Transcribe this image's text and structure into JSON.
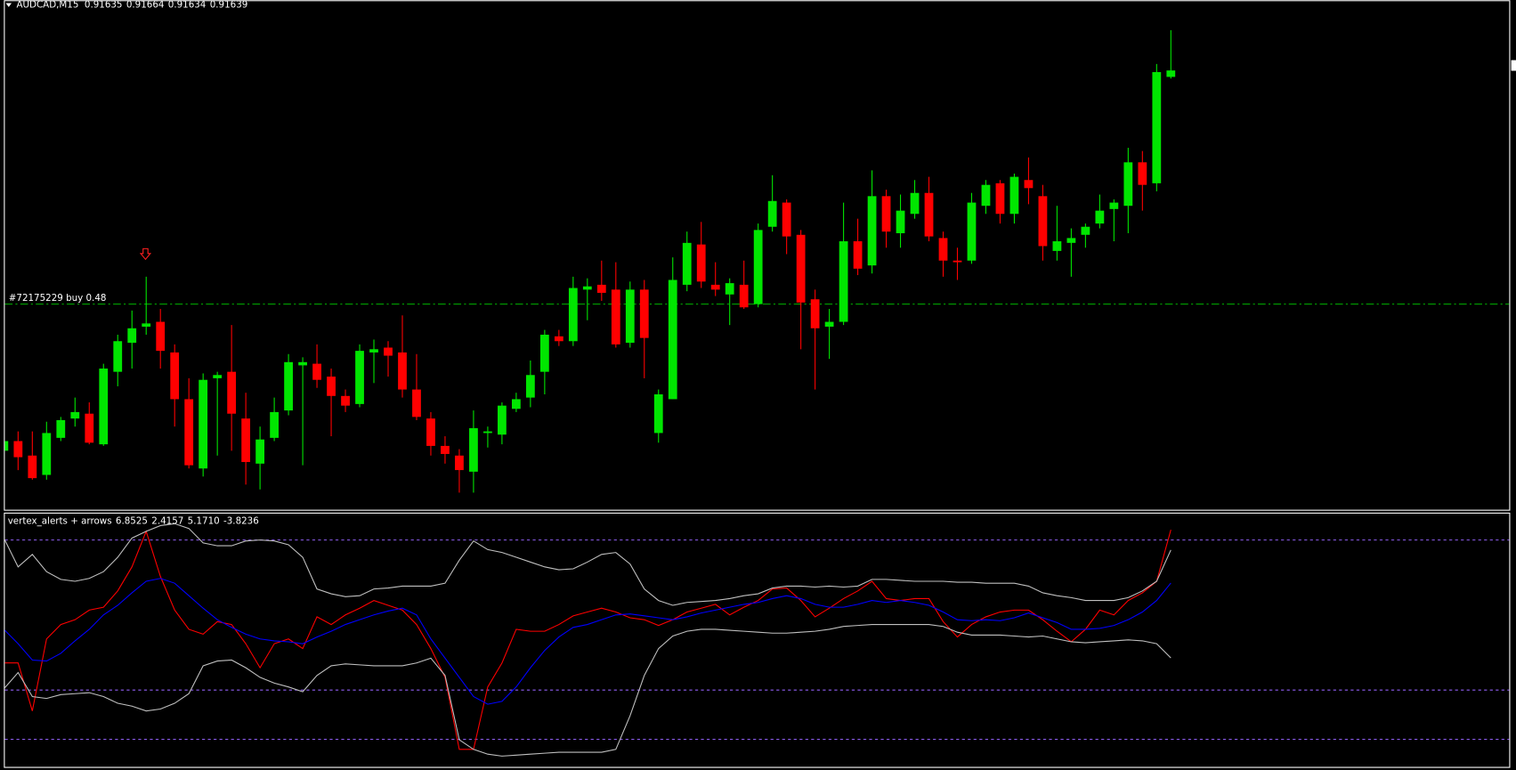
{
  "chart_data": [
    {
      "type": "candlestick",
      "title": "AUDCAD,M15",
      "ylim": [
        0.91367,
        0.91682
      ],
      "up_color": "#00e600",
      "down_color": "#ff0000",
      "candles": [
        [
          0.91403,
          0.91418,
          0.91382,
          0.91409
        ],
        [
          0.91409,
          0.91415,
          0.91391,
          0.91399
        ],
        [
          0.914,
          0.91415,
          0.91385,
          0.91386
        ],
        [
          0.91388,
          0.91421,
          0.91385,
          0.91414
        ],
        [
          0.91411,
          0.91424,
          0.91409,
          0.91422
        ],
        [
          0.91423,
          0.91436,
          0.91418,
          0.91427
        ],
        [
          0.91426,
          0.91433,
          0.91407,
          0.91408
        ],
        [
          0.91407,
          0.91457,
          0.91406,
          0.91454
        ],
        [
          0.91452,
          0.91475,
          0.91443,
          0.91471
        ],
        [
          0.9147,
          0.9149,
          0.91454,
          0.91479
        ],
        [
          0.9148,
          0.91511,
          0.91475,
          0.91482
        ],
        [
          0.91483,
          0.91491,
          0.91454,
          0.91465
        ],
        [
          0.91464,
          0.91469,
          0.91418,
          0.91435
        ],
        [
          0.91435,
          0.91448,
          0.91392,
          0.91394
        ],
        [
          0.91392,
          0.91451,
          0.91387,
          0.91447
        ],
        [
          0.91448,
          0.91452,
          0.914,
          0.9145
        ],
        [
          0.91452,
          0.91481,
          0.91403,
          0.91426
        ],
        [
          0.91423,
          0.91439,
          0.91382,
          0.91396
        ],
        [
          0.91395,
          0.91418,
          0.91379,
          0.9141
        ],
        [
          0.91411,
          0.91436,
          0.91409,
          0.91427
        ],
        [
          0.91428,
          0.91463,
          0.91425,
          0.91458
        ],
        [
          0.91456,
          0.91461,
          0.91394,
          0.91458
        ],
        [
          0.91457,
          0.91469,
          0.91442,
          0.91447
        ],
        [
          0.91449,
          0.91454,
          0.91412,
          0.91437
        ],
        [
          0.91437,
          0.91441,
          0.91427,
          0.91431
        ],
        [
          0.91432,
          0.91469,
          0.9143,
          0.91465
        ],
        [
          0.91464,
          0.91472,
          0.91445,
          0.91466
        ],
        [
          0.91467,
          0.91471,
          0.91449,
          0.91462
        ],
        [
          0.91464,
          0.91487,
          0.91436,
          0.91441
        ],
        [
          0.91441,
          0.91463,
          0.91422,
          0.91424
        ],
        [
          0.91423,
          0.91427,
          0.914,
          0.91406
        ],
        [
          0.91406,
          0.91412,
          0.91395,
          0.91401
        ],
        [
          0.914,
          0.91404,
          0.91377,
          0.91391
        ],
        [
          0.9139,
          0.91428,
          0.91377,
          0.91417
        ],
        [
          0.91414,
          0.91418,
          0.91405,
          0.91415
        ],
        [
          0.91413,
          0.91433,
          0.91407,
          0.91431
        ],
        [
          0.91429,
          0.91439,
          0.91427,
          0.91435
        ],
        [
          0.91436,
          0.91459,
          0.9143,
          0.9145
        ],
        [
          0.91452,
          0.91478,
          0.91438,
          0.91475
        ],
        [
          0.91474,
          0.91478,
          0.91468,
          0.91471
        ],
        [
          0.91471,
          0.91511,
          0.91468,
          0.91504
        ],
        [
          0.91503,
          0.9151,
          0.91484,
          0.91505
        ],
        [
          0.91506,
          0.91521,
          0.91496,
          0.91501
        ],
        [
          0.91503,
          0.9152,
          0.91467,
          0.91469
        ],
        [
          0.9147,
          0.91508,
          0.91467,
          0.91503
        ],
        [
          0.91503,
          0.91509,
          0.91448,
          0.91473
        ],
        [
          0.91414,
          0.91441,
          0.91408,
          0.91438
        ],
        [
          0.91435,
          0.91523,
          0.91435,
          0.91509
        ],
        [
          0.91506,
          0.91539,
          0.91502,
          0.91532
        ],
        [
          0.91531,
          0.91545,
          0.91504,
          0.91508
        ],
        [
          0.91506,
          0.9152,
          0.91499,
          0.91503
        ],
        [
          0.915,
          0.9151,
          0.91481,
          0.91507
        ],
        [
          0.91506,
          0.91521,
          0.91491,
          0.91492
        ],
        [
          0.91494,
          0.91544,
          0.91492,
          0.9154
        ],
        [
          0.91542,
          0.91574,
          0.91539,
          0.91558
        ],
        [
          0.91557,
          0.91559,
          0.91525,
          0.91536
        ],
        [
          0.91537,
          0.9154,
          0.91466,
          0.91495
        ],
        [
          0.91497,
          0.91503,
          0.91441,
          0.91479
        ],
        [
          0.9148,
          0.91491,
          0.9146,
          0.91483
        ],
        [
          0.91483,
          0.91557,
          0.91481,
          0.91533
        ],
        [
          0.91533,
          0.91547,
          0.91512,
          0.91516
        ],
        [
          0.91518,
          0.91577,
          0.91513,
          0.91561
        ],
        [
          0.91561,
          0.91565,
          0.91529,
          0.91539
        ],
        [
          0.91538,
          0.91562,
          0.91529,
          0.91552
        ],
        [
          0.9155,
          0.91571,
          0.91547,
          0.91563
        ],
        [
          0.91563,
          0.91573,
          0.91533,
          0.91536
        ],
        [
          0.91535,
          0.91539,
          0.91511,
          0.91521
        ],
        [
          0.91521,
          0.91529,
          0.91509,
          0.9152
        ],
        [
          0.91521,
          0.91563,
          0.91519,
          0.91557
        ],
        [
          0.91555,
          0.91571,
          0.9155,
          0.91568
        ],
        [
          0.91569,
          0.91571,
          0.91544,
          0.9155
        ],
        [
          0.9155,
          0.91575,
          0.91544,
          0.91573
        ],
        [
          0.91571,
          0.91585,
          0.91556,
          0.91566
        ],
        [
          0.91561,
          0.91568,
          0.91521,
          0.9153
        ],
        [
          0.91527,
          0.91555,
          0.91521,
          0.91533
        ],
        [
          0.91532,
          0.91541,
          0.91511,
          0.91535
        ],
        [
          0.91537,
          0.91544,
          0.91529,
          0.91542
        ],
        [
          0.91544,
          0.91562,
          0.91541,
          0.91552
        ],
        [
          0.91553,
          0.91559,
          0.91533,
          0.91557
        ],
        [
          0.91555,
          0.91591,
          0.91538,
          0.91582
        ],
        [
          0.91582,
          0.91589,
          0.91552,
          0.91568
        ],
        [
          0.91569,
          0.91643,
          0.91564,
          0.91638
        ],
        [
          0.91635,
          0.91664,
          0.91634,
          0.91639
        ]
      ],
      "order_line": {
        "label": "#72175229 buy 0.48",
        "value": 0.91494,
        "color": "#00b400"
      }
    },
    {
      "type": "line",
      "title": "vertex_alerts + arrows",
      "readouts": [
        6.8525,
        2.4157,
        {
          "value": 5.171,
          "label": "5.1710"
        },
        -3.8236
      ],
      "ylim": [
        -12.9,
        8.2
      ],
      "levels": [
        6,
        -6.5,
        -10.6
      ],
      "level_color": "#8f5ef2",
      "series": [
        {
          "color": "#ff0000",
          "values": [
            -4.24,
            -4.24,
            -8.24,
            -2.24,
            -1.04,
            -0.64,
            0.16,
            0.4,
            1.76,
            3.76,
            6.72,
            2.96,
            0.16,
            -1.44,
            -1.84,
            -0.8,
            -1.04,
            -2.64,
            -4.64,
            -2.64,
            -2.24,
            -3.04,
            -0.4,
            -1.04,
            -0.24,
            0.32,
            0.96,
            0.56,
            0.16,
            -1.04,
            -3.04,
            -5.44,
            -11.44,
            -11.44,
            -6.24,
            -4.24,
            -1.44,
            -1.6,
            -1.6,
            -1.04,
            -0.32,
            0,
            0.32,
            0,
            -0.48,
            -0.64,
            -1.12,
            -0.64,
            0,
            0.32,
            0.64,
            -0.24,
            0.4,
            0.96,
            1.92,
            2,
            0.96,
            -0.4,
            0.32,
            1.12,
            1.76,
            2.56,
            1.12,
            0.96,
            1.12,
            1.12,
            -0.8,
            -2.08,
            -1.04,
            -0.4,
            0,
            0.16,
            0.16,
            -0.64,
            -1.6,
            -2.48,
            -1.44,
            0.16,
            -0.24,
            0.96,
            1.6,
            2.56,
            6.8525
          ]
        },
        {
          "color": "#0000ff",
          "values": [
            -1.44,
            -2.64,
            -4,
            -4.08,
            -3.44,
            -2.4,
            -1.44,
            -0.24,
            0.56,
            1.6,
            2.56,
            2.8,
            2.4,
            1.36,
            0.32,
            -0.64,
            -1.28,
            -1.84,
            -2.24,
            -2.4,
            -2.48,
            -2.64,
            -2.08,
            -1.6,
            -1.04,
            -0.64,
            -0.24,
            0.08,
            0.32,
            -0.24,
            -2.24,
            -3.84,
            -5.44,
            -7.04,
            -7.68,
            -7.44,
            -6.24,
            -4.64,
            -3.2,
            -2.08,
            -1.28,
            -1.04,
            -0.64,
            -0.24,
            -0.16,
            -0.32,
            -0.48,
            -0.64,
            -0.4,
            -0.08,
            0.16,
            0.4,
            0.64,
            0.8,
            1.12,
            1.36,
            1.12,
            0.64,
            0.4,
            0.4,
            0.64,
            0.96,
            0.8,
            0.96,
            0.8,
            0.56,
            0,
            -0.64,
            -0.72,
            -0.64,
            -0.72,
            -0.48,
            -0.08,
            -0.48,
            -0.88,
            -1.44,
            -1.44,
            -1.36,
            -1.12,
            -0.64,
            0,
            0.96,
            2.4157
          ]
        },
        {
          "color": "#c0c0c0",
          "values": [
            6.16,
            3.76,
            4.8,
            3.36,
            2.72,
            2.56,
            2.8,
            3.36,
            4.56,
            6.16,
            6.72,
            7.2,
            7.36,
            6.96,
            5.76,
            5.52,
            5.52,
            5.92,
            6,
            5.92,
            5.6,
            4.56,
            1.92,
            1.52,
            1.28,
            1.36,
            1.92,
            2,
            2.16,
            2.16,
            2.16,
            2.4,
            4.32,
            5.92,
            5.2,
            4.96,
            4.56,
            4.16,
            3.76,
            3.52,
            3.6,
            4.16,
            4.8,
            4.96,
            4,
            1.92,
            0.96,
            0.56,
            0.8,
            0.88,
            0.96,
            1.12,
            1.36,
            1.52,
            2,
            2.16,
            2.16,
            2.08,
            2.16,
            2.08,
            2.16,
            2.72,
            2.72,
            2.64,
            2.56,
            2.56,
            2.56,
            2.48,
            2.48,
            2.4,
            2.4,
            2.4,
            2.16,
            1.6,
            1.36,
            1.2,
            0.96,
            0.96,
            0.96,
            1.2,
            1.76,
            2.56,
            5.171
          ]
        },
        {
          "color": "#c0c0c0",
          "values": [
            -6.4,
            -5.04,
            -7.04,
            -7.2,
            -6.88,
            -6.8,
            -6.72,
            -7.04,
            -7.6,
            -7.84,
            -8.24,
            -8.08,
            -7.6,
            -6.8,
            -4.48,
            -4.08,
            -4,
            -4.64,
            -5.44,
            -5.92,
            -6.24,
            -6.64,
            -5.28,
            -4.48,
            -4.32,
            -4.4,
            -4.48,
            -4.48,
            -4.48,
            -4.24,
            -3.84,
            -5.28,
            -10.64,
            -11.44,
            -11.84,
            -12,
            -11.92,
            -11.84,
            -11.76,
            -11.68,
            -11.68,
            -11.68,
            -11.68,
            -11.44,
            -8.64,
            -5.28,
            -3.04,
            -2,
            -1.6,
            -1.44,
            -1.44,
            -1.52,
            -1.6,
            -1.68,
            -1.76,
            -1.76,
            -1.68,
            -1.6,
            -1.44,
            -1.2,
            -1.12,
            -1.04,
            -1.04,
            -1.04,
            -1.04,
            -1.04,
            -1.2,
            -1.68,
            -1.92,
            -1.92,
            -1.92,
            -2,
            -2.08,
            -2,
            -2.24,
            -2.48,
            -2.56,
            -2.48,
            -2.4,
            -2.32,
            -2.4,
            -2.64,
            -3.8236
          ]
        }
      ]
    }
  ]
}
